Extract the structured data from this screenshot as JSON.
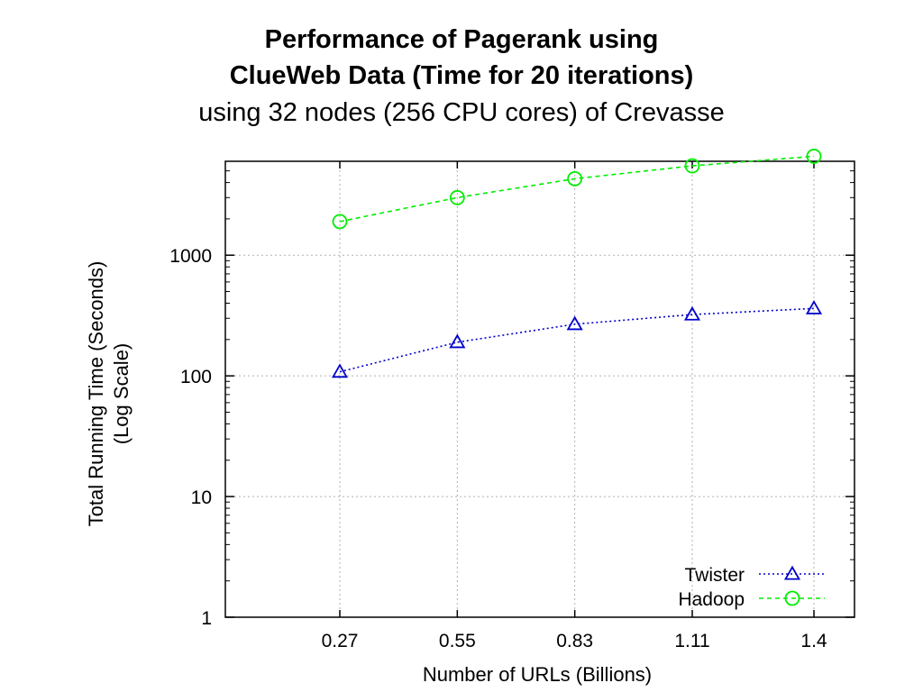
{
  "title_line1": "Performance of Pagerank using",
  "title_line2": "ClueWeb Data (Time for 20 iterations)",
  "title_line3": "using 32 nodes (256 CPU cores) of Crevasse",
  "chart_data": {
    "type": "line",
    "x": [
      0.27,
      0.55,
      0.83,
      1.11,
      1.4
    ],
    "x_tick_labels": [
      "0.27",
      "0.55",
      "0.83",
      "1.11",
      "1.4"
    ],
    "xlabel": "Number of URLs (Billions)",
    "ylabel_line1": "Total Running Time (Seconds)",
    "ylabel_line2": "(Log Scale)",
    "y_scale": "log",
    "ylim": [
      1,
      6000
    ],
    "y_ticks": [
      1,
      10,
      100,
      1000
    ],
    "y_tick_labels": [
      "1",
      "10",
      "100",
      "1000"
    ],
    "grid": true,
    "legend_position": "bottom-right",
    "series": [
      {
        "name": "Twister",
        "values": [
          108,
          190,
          268,
          322,
          362
        ],
        "color": "#0000cc",
        "marker": "triangle",
        "line": "dotted"
      },
      {
        "name": "Hadoop",
        "values": [
          1900,
          3000,
          4300,
          5500,
          6600
        ],
        "color": "#00ee00",
        "marker": "circle",
        "line": "dashed"
      }
    ]
  }
}
